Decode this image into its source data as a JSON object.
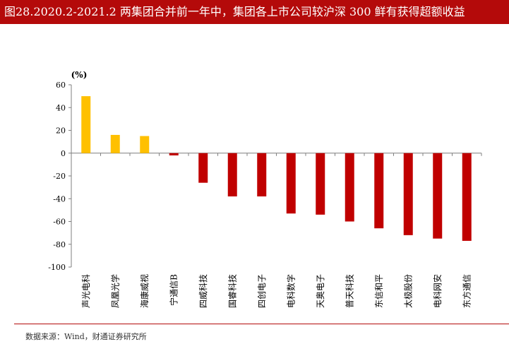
{
  "title": "图28.2020.2-2021.2 两集团合并前一年中，集团各上市公司较沪深 300 鲜有获得超额收益",
  "source": "数据来源：Wind，财通证券研究所",
  "colors": {
    "title_bg": "#b40a0a",
    "positive": "#ffc000",
    "negative": "#c00000",
    "axis": "#7f7f7f"
  },
  "chart_data": {
    "type": "bar",
    "title": "",
    "ylabel": "(%)",
    "xlabel": "",
    "ylim": [
      -100,
      60
    ],
    "yticks": [
      60,
      40,
      20,
      0,
      -20,
      -40,
      -60,
      -80,
      -100
    ],
    "grid": false,
    "categories": [
      "声光电科",
      "凤凰光学",
      "海康威视",
      "宁通信B",
      "四威科技",
      "国睿科技",
      "四创电子",
      "电科数字",
      "天奥电子",
      "普天科技",
      "东信和平",
      "太极股份",
      "电科网安",
      "东方通信"
    ],
    "values": [
      50,
      16,
      15,
      -2,
      -26,
      -38,
      -38,
      -53,
      -54,
      -60,
      -66,
      -72,
      -75,
      -77
    ]
  }
}
